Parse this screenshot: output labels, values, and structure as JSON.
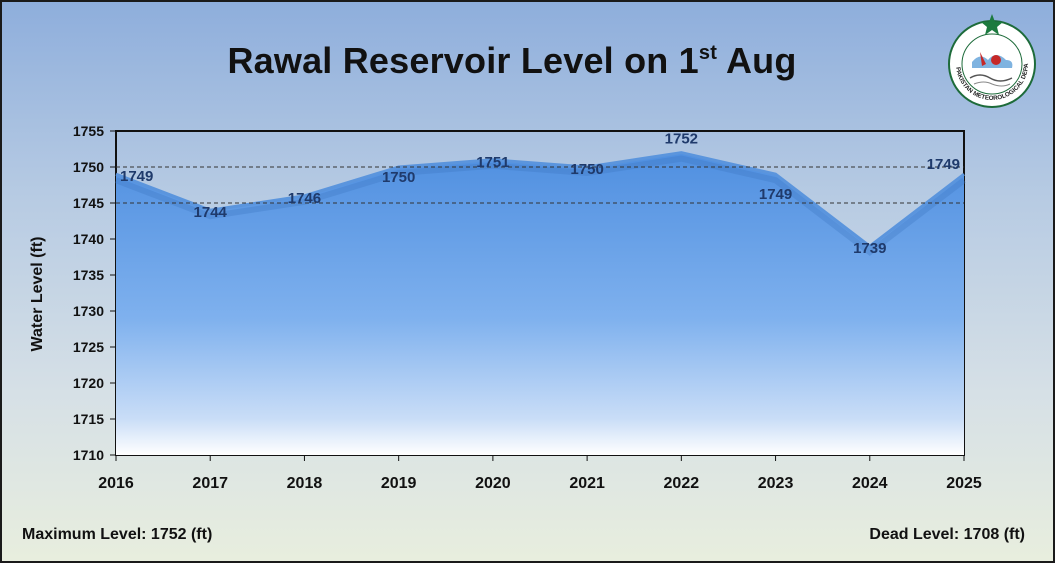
{
  "title": {
    "main": "Rawal Reservoir Level on 1",
    "sup": "st",
    "end": " Aug"
  },
  "footer": {
    "max_label": "Maximum Level: 1752 (ft)",
    "dead_label": "Dead Level: 1708 (ft)"
  },
  "logo": {
    "text": "PAKISTAN METEOROLOGICAL DEPARTMENT",
    "icon": "pmd-emblem-icon"
  },
  "colors": {
    "area_top": "#4f8fe0",
    "area_bottom": "#ffffff",
    "line": "#5b95dd",
    "label": "#1f3a6b",
    "ref_line": "#333333"
  },
  "chart_data": {
    "type": "area",
    "title": "Rawal Reservoir Level on 1st Aug",
    "xlabel": "",
    "ylabel": "Water Level (ft)",
    "ylim": [
      1710,
      1755
    ],
    "yticks": [
      1710,
      1715,
      1720,
      1725,
      1730,
      1735,
      1740,
      1745,
      1750,
      1755
    ],
    "categories": [
      "2016",
      "2017",
      "2018",
      "2019",
      "2020",
      "2021",
      "2022",
      "2023",
      "2024",
      "2025"
    ],
    "values": [
      1749,
      1744,
      1746,
      1750,
      1751,
      1750,
      1752,
      1749,
      1739,
      1749
    ],
    "data_labels": [
      "1749",
      "1744",
      "1746",
      "1750",
      "1751",
      "1750",
      "1752",
      "1749",
      "1739",
      "1749"
    ],
    "reference_lines": [
      1750,
      1745
    ],
    "grid": false,
    "legend": "none"
  }
}
